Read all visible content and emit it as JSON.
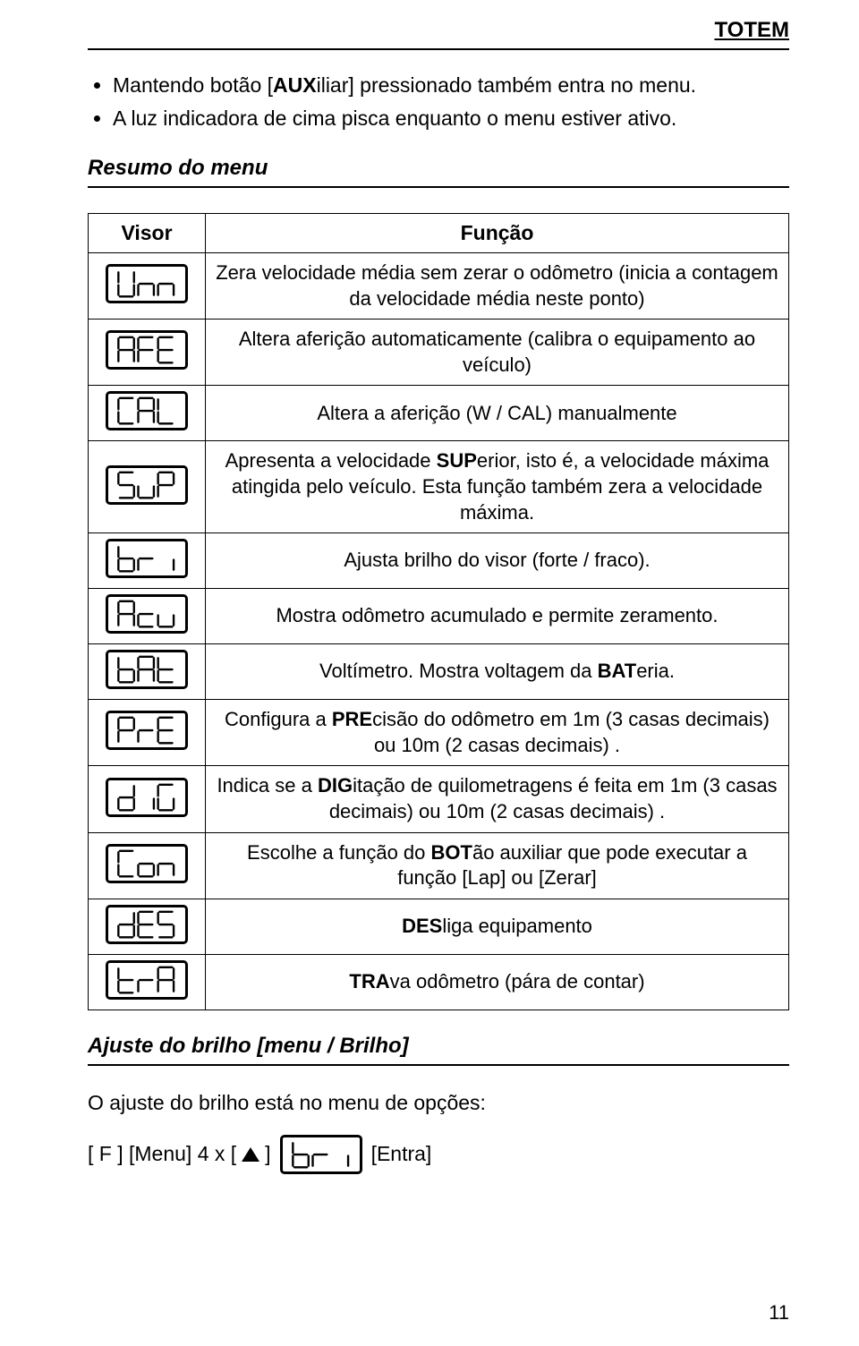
{
  "header": {
    "title": "TOTEM"
  },
  "bullets": [
    {
      "pre": "Mantendo botão [",
      "bold": "AUX",
      "post": "iliar] pressionado também entra no menu."
    },
    {
      "pre": "A luz indicadora de cima pisca enquanto o menu estiver ativo.",
      "bold": "",
      "post": ""
    }
  ],
  "section1": {
    "title": "Resumo do menu"
  },
  "table": {
    "head_visor": "Visor",
    "head_func": "Função",
    "rows": [
      {
        "code": "Unn",
        "html": "Zera velocidade média sem zerar o odômetro (inicia a contagem da velocidade média neste ponto)"
      },
      {
        "code": "AFE",
        "html": "Altera aferição automaticamente (calibra o equipamento ao veículo)"
      },
      {
        "code": "CAL",
        "html": "Altera a aferição (W / CAL) manualmente"
      },
      {
        "code": "SuP",
        "html": "Apresenta a velocidade <b>SUP</b>erior, isto é, a velocidade máxima atingida pelo veículo. Esta função também zera a velocidade máxima."
      },
      {
        "code": "bri",
        "html": "Ajusta brilho do visor (forte / fraco)."
      },
      {
        "code": "Acu",
        "html": "Mostra odômetro acumulado e permite zeramento."
      },
      {
        "code": "bAT",
        "html": "Voltímetro. Mostra voltagem da <b>BAT</b>eria."
      },
      {
        "code": "PrE",
        "html": "Configura a <b>PRE</b>cisão do odômetro em 1m (3 casas decimais) ou 10m (2 casas decimais) ."
      },
      {
        "code": "diG",
        "html": "Indica se a <b>DIG</b>itação de quilometragens é feita em 1m (3 casas decimais) ou 10m (2 casas decimais) ."
      },
      {
        "code": "Con",
        "html": "Escolhe a função do <b>BOT</b>ão auxiliar que pode executar a função [Lap] ou [Zerar]"
      },
      {
        "code": "dES",
        "html": "<b>DES</b>liga equipamento"
      },
      {
        "code": "TrA",
        "html": "<b>TRA</b>va odômetro (pára de contar)"
      }
    ]
  },
  "section2": {
    "title": "Ajuste do brilho [menu / Brilho]"
  },
  "body2": "O ajuste do brilho está no menu de opções:",
  "sequence": {
    "p1": "[ F ] [Menu] 4 x [",
    "p2": "]",
    "lcd_code": "bri",
    "p3": "[Entra]"
  },
  "page_number": "11",
  "style": {
    "seg_stroke": "#000000",
    "seg_width": 3
  }
}
